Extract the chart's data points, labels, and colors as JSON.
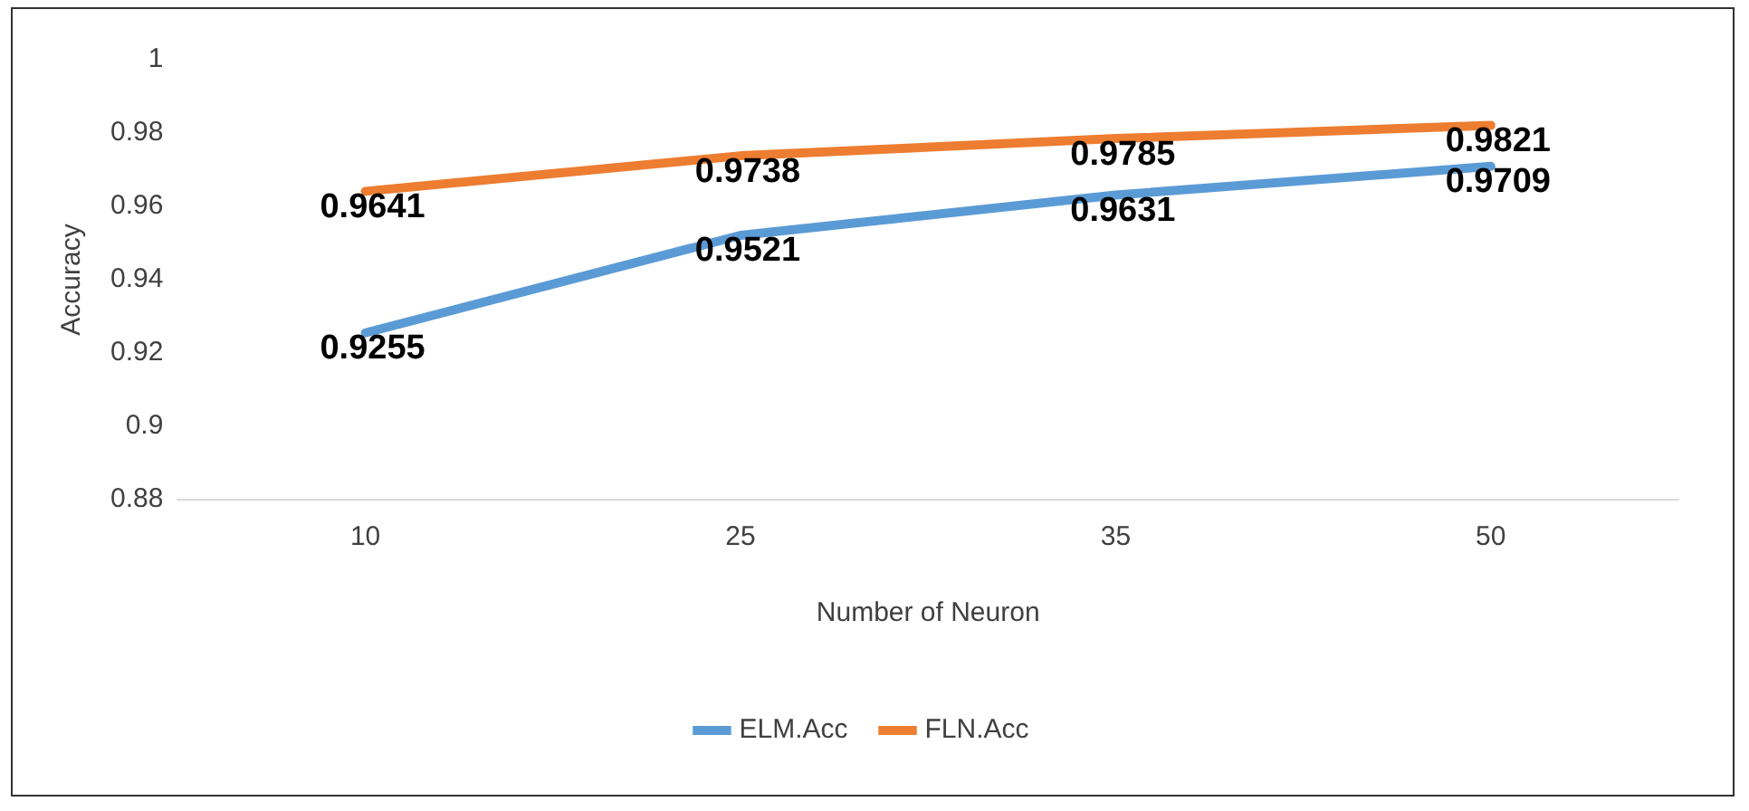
{
  "chart_data": {
    "type": "line",
    "xlabel": "Number of Neuron",
    "ylabel": "Accuracy",
    "categories": [
      "10",
      "25",
      "35",
      "50"
    ],
    "series": [
      {
        "name": "ELM.Acc",
        "color": "#5b9bd5",
        "values": [
          0.9255,
          0.9521,
          0.9631,
          0.9709
        ]
      },
      {
        "name": "FLN.Acc",
        "color": "#ed7d31",
        "values": [
          0.9641,
          0.9738,
          0.9785,
          0.9821
        ]
      }
    ],
    "ylim": [
      0.88,
      1
    ],
    "yticks": [
      0.88,
      0.9,
      0.92,
      0.94,
      0.96,
      0.98,
      1
    ],
    "grid": false,
    "legend": "bottom",
    "marker": "none",
    "line_style": "solid",
    "data_labels": true
  }
}
